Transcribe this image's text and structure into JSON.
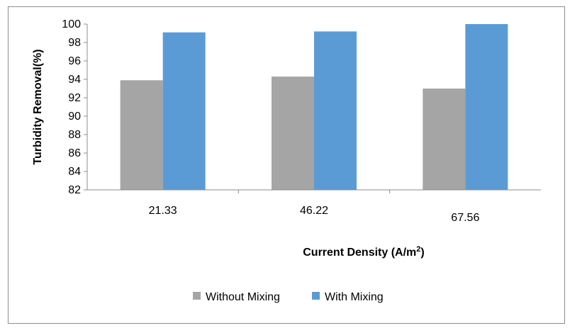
{
  "chart_data": {
    "type": "bar",
    "title": "",
    "categories": [
      "21.33",
      "46.22",
      "67.56"
    ],
    "series": [
      {
        "name": "Without Mixing",
        "values": [
          93.9,
          94.3,
          93.0
        ],
        "color": "#a5a5a5"
      },
      {
        "name": "With Mixing",
        "values": [
          99.1,
          99.2,
          100.0
        ],
        "color": "#5b9bd5"
      }
    ],
    "xlabel_main": "Current Density (A/m",
    "xlabel_sup": "2",
    "xlabel_end": ")",
    "ylabel": "Turbidity Removal(%)",
    "ylim": [
      82,
      100
    ],
    "yticks": [
      82,
      84,
      86,
      88,
      90,
      92,
      94,
      96,
      98,
      100
    ],
    "grid": false,
    "legend_position": "bottom"
  }
}
